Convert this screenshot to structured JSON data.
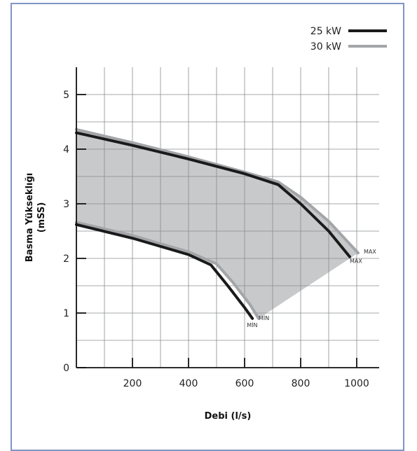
{
  "chart_data": {
    "type": "line",
    "xlabel": "Debi (l/s)",
    "ylabel": "Basma Yükseklığı",
    "ylabel_unit": "(mSS)",
    "xlim": [
      0,
      1080
    ],
    "ylim": [
      0,
      5.5
    ],
    "x_ticks": [
      200,
      400,
      600,
      800,
      1000
    ],
    "y_ticks": [
      0,
      1,
      2,
      3,
      4,
      5
    ],
    "grid": true,
    "legend_position": "top-right",
    "operating_area_fill": "#c8c9cb",
    "series": [
      {
        "name": "25 kW",
        "color": "#1a1a1a",
        "max_curve": {
          "x": [
            0,
            200,
            400,
            600,
            720,
            800,
            900,
            975
          ],
          "y": [
            4.3,
            4.07,
            3.82,
            3.55,
            3.35,
            3.0,
            2.5,
            2.03
          ]
        },
        "min_curve": {
          "x": [
            0,
            200,
            400,
            480,
            540,
            600,
            628
          ],
          "y": [
            2.62,
            2.37,
            2.07,
            1.88,
            1.5,
            1.1,
            0.9
          ]
        },
        "max_label": "MAX",
        "min_label": "MİN"
      },
      {
        "name": "30 kW",
        "color": "#a3a5a8",
        "max_curve": {
          "x": [
            0,
            200,
            400,
            600,
            720,
            800,
            900,
            1005
          ],
          "y": [
            4.36,
            4.12,
            3.86,
            3.58,
            3.4,
            3.12,
            2.68,
            2.1
          ]
        },
        "min_curve": {
          "x": [
            0,
            200,
            400,
            500,
            560,
            620,
            650
          ],
          "y": [
            2.66,
            2.42,
            2.12,
            1.9,
            1.55,
            1.15,
            0.9
          ]
        },
        "max_label": "MAX",
        "min_label": "MİN"
      }
    ]
  }
}
